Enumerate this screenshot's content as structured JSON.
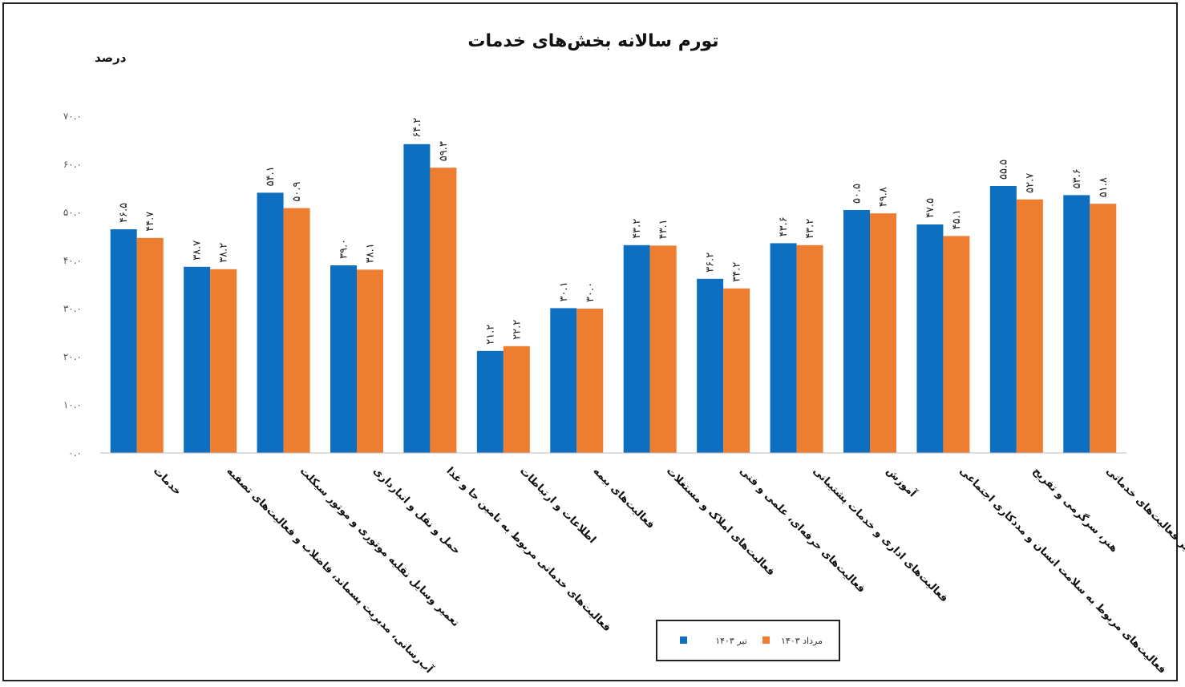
{
  "chart_data": {
    "type": "bar",
    "title": "تورم سالانه بخش‌های خدمات",
    "ylabel": "درصد",
    "xlabel": "",
    "ylim": [
      0,
      70
    ],
    "yticks": [
      0,
      10,
      20,
      30,
      40,
      50,
      60,
      70
    ],
    "ytick_labels": [
      "۰.۰",
      "۱۰.۰",
      "۲۰.۰",
      "۳۰.۰",
      "۴۰.۰",
      "۵۰.۰",
      "۶۰.۰",
      "۷۰.۰"
    ],
    "grid": false,
    "legend_position": "bottom-center",
    "categories": [
      "خدمات",
      "آب‌رسانی، مدیریت پسماند، فاضلاب و فعالیت‌های تصفیه",
      "تعمیر وسایل نقلیه موتوری و موتور سیکلت",
      "حمل و نقل و انبارداری",
      "فعالیت‌های خدماتی مربوط به تامین جا و غذا",
      "اطلاعات و ارتباطات",
      "فعالیت‌های بیمه",
      "فعالیت‌های املاک و مستغلات",
      "فعالیت‌های حرفه‌ای، علمی و فنی",
      "فعالیت‌های اداری و خدمات پشتیبانی",
      "آموزش",
      "فعالیت‌های مربوط به سلامت انسان و مددکاری اجتماعی",
      "هنر، سرگرمی و تفریح",
      "سایر فعالیت‌های خدماتی"
    ],
    "series": [
      {
        "name": "تیر ۱۴۰۳",
        "color": "#0E6EC0",
        "values": [
          46.5,
          38.7,
          54.1,
          39.0,
          64.2,
          21.2,
          30.1,
          43.2,
          36.2,
          43.6,
          50.5,
          47.5,
          55.5,
          53.6
        ]
      },
      {
        "name": "مرداد ۱۴۰۳",
        "color": "#ED7D31",
        "values": [
          44.7,
          38.2,
          50.9,
          38.1,
          59.3,
          22.2,
          30.0,
          43.1,
          34.2,
          43.2,
          49.8,
          45.1,
          52.7,
          51.8
        ]
      }
    ]
  }
}
